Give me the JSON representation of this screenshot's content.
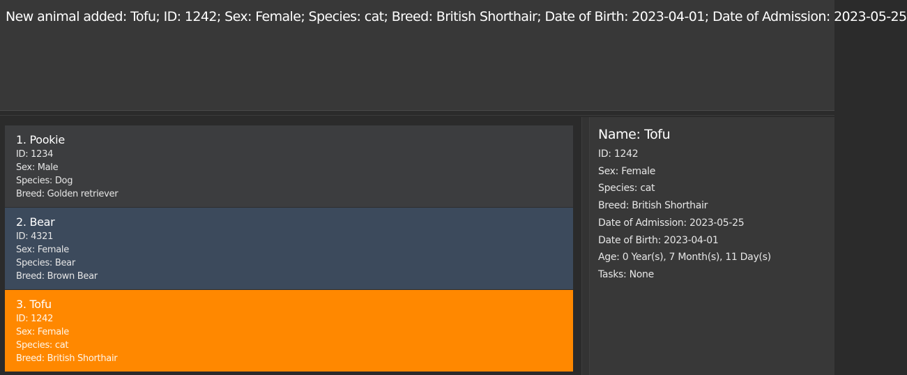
{
  "result_display": {
    "message": "New animal added: Tofu; ID: 1242; Sex: Female; Species: cat; Breed: British Shorthair; Date of Birth: 2023-04-01; Date of Admission: 2023-05-25"
  },
  "animal_list": [
    {
      "title": "1.  Pookie",
      "id": "ID: 1234",
      "sex": "Sex: Male",
      "species": "Species: Dog",
      "breed": "Breed: Golden retriever"
    },
    {
      "title": "2.  Bear",
      "id": "ID: 4321",
      "sex": "Sex: Female",
      "species": "Species: Bear",
      "breed": "Breed: Brown Bear"
    },
    {
      "title": "3.  Tofu",
      "id": "ID: 1242",
      "sex": "Sex: Female",
      "species": "Species: cat",
      "breed": "Breed: British Shorthair"
    }
  ],
  "details": {
    "name": "Name: Tofu",
    "id": "ID: 1242",
    "sex": "Sex: Female",
    "species": "Species: cat",
    "breed": "Breed: British Shorthair",
    "admission": "Date of Admission: 2023-05-25",
    "birth": "Date of Birth: 2023-04-01",
    "age": "Age: 0 Year(s), 7 Month(s), 11 Day(s)",
    "tasks": "Tasks: None"
  },
  "colors": {
    "background": "#2b2b2b",
    "panel": "#383838",
    "card_default": "#3c3d3f",
    "card_hover": "#3c4a5c",
    "card_selected": "#ff8800"
  }
}
